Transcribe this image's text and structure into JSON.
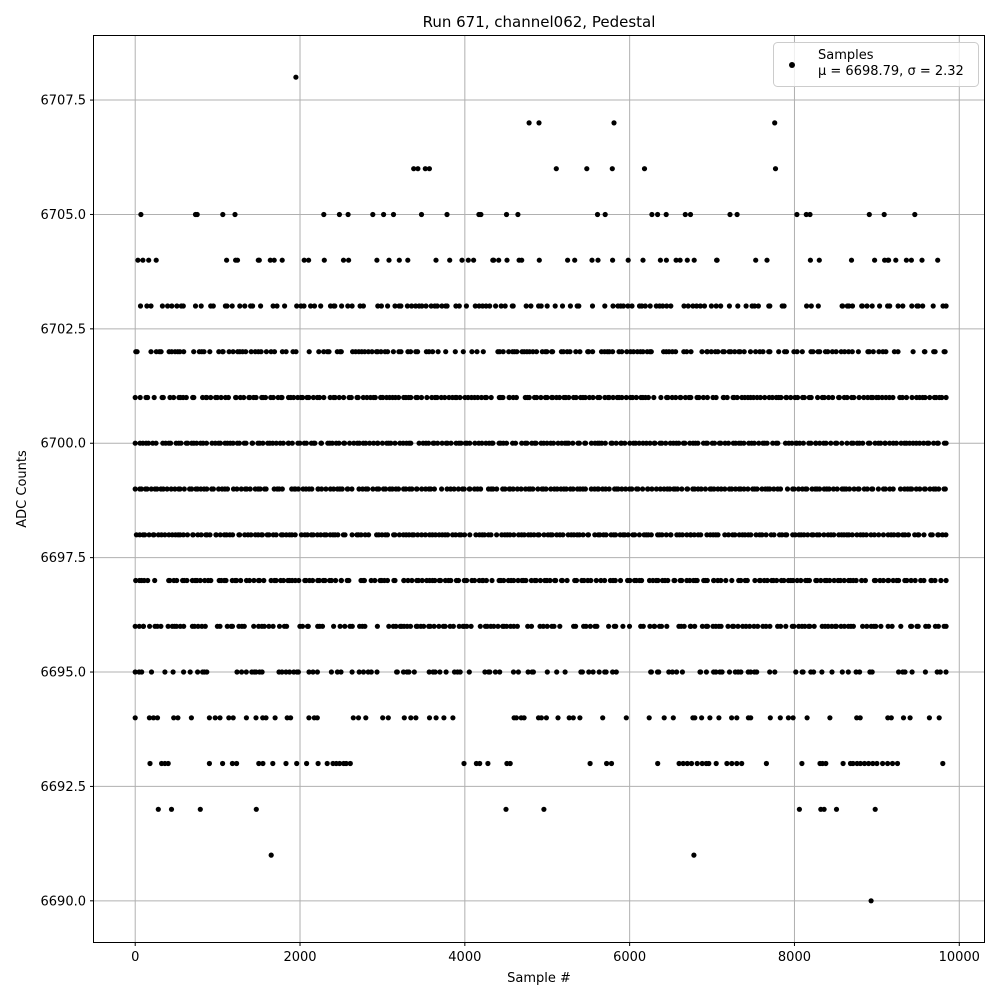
{
  "chart_data": {
    "type": "scatter",
    "title": "Run 671, channel062, Pedestal",
    "xlabel": "Sample #",
    "ylabel": "ADC Counts",
    "xlim": [
      -500,
      10300
    ],
    "ylim": [
      6689.1,
      6708.9
    ],
    "grid": true,
    "legend_position": "top-right",
    "x_ticks": [
      "0",
      "2000",
      "4000",
      "6000",
      "8000",
      "10000"
    ],
    "y_ticks": [
      "6690.0",
      "6692.5",
      "6695.0",
      "6697.5",
      "6700.0",
      "6702.5",
      "6705.0",
      "6707.5"
    ],
    "marker_color": "#000000",
    "grid_color": "#b0b0b0",
    "legend": {
      "label": "Samples",
      "stats": "μ = 6698.79, σ = 2.32"
    },
    "x_range": [
      0,
      9840
    ],
    "levels": [
      {
        "y": 6690,
        "points": [
          8930
        ]
      },
      {
        "y": 6691,
        "points": [
          1650,
          6780
        ]
      },
      {
        "y": 6692,
        "points": [
          280,
          440,
          790,
          1470,
          4500,
          4960,
          8060,
          8320,
          8360,
          8510,
          8980
        ]
      },
      {
        "y": 6693,
        "points": [
          180,
          320,
          360,
          400,
          900,
          1060,
          1180,
          1230,
          1500,
          1550,
          1670,
          1830,
          1960,
          2080,
          2220,
          2330,
          2400,
          2440,
          2480,
          2530,
          2560,
          2610,
          3990,
          4140,
          4180,
          4280,
          4510,
          4550,
          5520,
          5720,
          5780,
          6340,
          6600,
          6650,
          6700,
          6750,
          6820,
          6880,
          6930,
          6960,
          7050,
          7180,
          7240,
          7300,
          7360,
          7660,
          8090,
          8310,
          8340,
          8380,
          8590,
          8680,
          8710,
          8760,
          8800,
          8850,
          8900,
          8950,
          9000,
          9070,
          9130,
          9190,
          9250,
          9800
        ]
      },
      {
        "y": 6707,
        "points": [
          4780,
          4900,
          5810,
          7760
        ]
      },
      {
        "y": 6708,
        "points": [
          1950
        ]
      },
      {
        "y": 6706,
        "points": [
          3380,
          3430,
          3520,
          3570,
          5110,
          5480,
          5790,
          6180,
          7770
        ]
      }
    ],
    "dense_levels": [
      {
        "y": 6705,
        "density": 0.12,
        "seed": 11
      },
      {
        "y": 6704,
        "density": 0.22,
        "seed": 12
      },
      {
        "y": 6703,
        "density": 0.55,
        "seed": 13
      },
      {
        "y": 6702,
        "density": 0.75,
        "seed": 14
      },
      {
        "y": 6701,
        "density": 0.92,
        "seed": 15
      },
      {
        "y": 6700,
        "density": 0.97,
        "seed": 16
      },
      {
        "y": 6699,
        "density": 0.97,
        "seed": 17
      },
      {
        "y": 6698,
        "density": 0.97,
        "seed": 18
      },
      {
        "y": 6697,
        "density": 0.88,
        "seed": 19
      },
      {
        "y": 6696,
        "density": 0.72,
        "seed": 20
      },
      {
        "y": 6695,
        "density": 0.52,
        "seed": 21
      },
      {
        "y": 6694,
        "density": 0.28,
        "seed": 22
      }
    ]
  }
}
